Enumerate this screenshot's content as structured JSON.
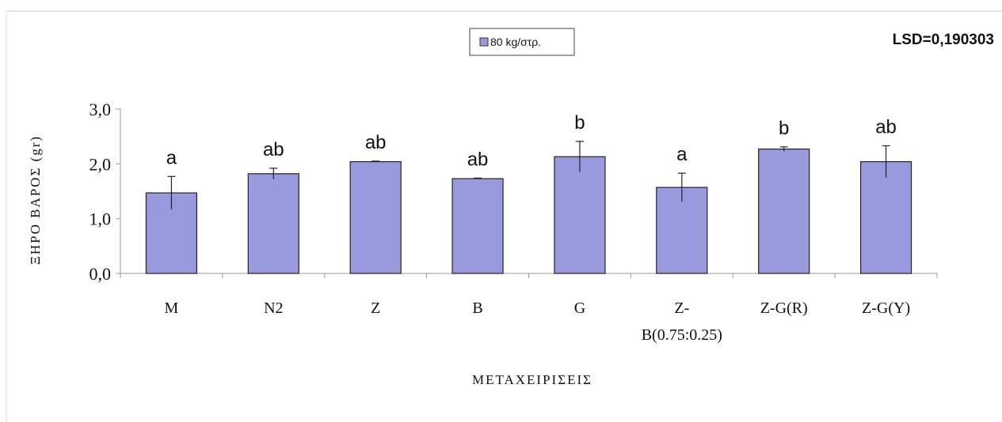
{
  "chart_data": {
    "type": "bar",
    "categories": [
      "M",
      "N2",
      "Z",
      "B",
      "G",
      "Z-B(0.75:0.25)",
      "Z-G(R)",
      "Z-G(Y)"
    ],
    "category_lines": [
      [
        "M"
      ],
      [
        "N2"
      ],
      [
        "Z"
      ],
      [
        "B"
      ],
      [
        "G"
      ],
      [
        "Z-",
        "B(0.75:0.25)"
      ],
      [
        "Z-G(R)"
      ],
      [
        "Z-G(Y)"
      ]
    ],
    "series": [
      {
        "name": "80 kg/στρ.",
        "color": "#9999dd",
        "values": [
          1.47,
          1.82,
          2.04,
          1.73,
          2.13,
          1.57,
          2.27,
          2.04
        ],
        "error": [
          0.3,
          0.1,
          0.01,
          0.01,
          0.28,
          0.26,
          0.04,
          0.29
        ],
        "letters": [
          "a",
          "ab",
          "ab",
          "ab",
          "b",
          "a",
          "b",
          "ab"
        ]
      }
    ],
    "ylabel": "ΞΗΡΟ ΒΑΡΟΣ (gr)",
    "xlabel": "ΜΕΤΑΧΕΙΡΙΣΕΙΣ",
    "ylim": [
      0,
      3
    ],
    "yticks": [
      "0,0",
      "1,0",
      "2,0",
      "3,0"
    ],
    "annotation": "LSD=0,190303",
    "legend_position": "top-center",
    "grid": false
  }
}
